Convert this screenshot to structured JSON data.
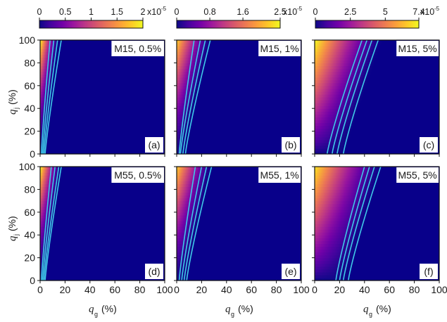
{
  "colormap_stops": [
    "#0d0887",
    "#46039f",
    "#7201a8",
    "#9c179e",
    "#bd3786",
    "#d8576b",
    "#ed7953",
    "#fb9f3a",
    "#fdca26",
    "#f0f921"
  ],
  "background_color": "#08008a",
  "contour_color": "#3fc8e8",
  "chart_data": {
    "type": "heatmap",
    "xlabel": {
      "symbol": "q",
      "subscript": "g",
      "unit": "(%)"
    },
    "ylabel": {
      "symbol": "q",
      "subscript": "j",
      "unit": "(%)"
    },
    "xlim": [
      0,
      100
    ],
    "ylim": [
      0,
      100
    ],
    "x_ticks": [
      "0",
      "20",
      "40",
      "60",
      "80",
      "100"
    ],
    "y_ticks": [
      "0",
      "20",
      "40",
      "60",
      "80",
      "100"
    ],
    "colorbars": [
      {
        "ticks": [
          "0",
          "0.5",
          "1",
          "1.5",
          "2"
        ],
        "tick_values": [
          0,
          0.5,
          1,
          1.5,
          2
        ],
        "max": 2,
        "multiplier": "x10",
        "exponent": "-5"
      },
      {
        "ticks": [
          "0",
          "0.8",
          "1.6",
          "2.5"
        ],
        "tick_values": [
          0,
          0.8,
          1.6,
          2.5
        ],
        "max": 2.5,
        "multiplier": "x10",
        "exponent": "-5"
      },
      {
        "ticks": [
          "0",
          "2.5",
          "5",
          "7.4"
        ],
        "tick_values": [
          0,
          2.5,
          5,
          7.4
        ],
        "max": 7.4,
        "multiplier": "x10",
        "exponent": "-5"
      }
    ],
    "panels": [
      {
        "label": "M15, 0.5%",
        "tag": "(a)",
        "row": 0,
        "col": 0,
        "boundary_qg": [
          3,
          15
        ],
        "contour_qg": [
          [
            1,
            8
          ],
          [
            2,
            11
          ],
          [
            3,
            14
          ],
          [
            4,
            17
          ]
        ],
        "peak": 1.0,
        "falloff": 1.6
      },
      {
        "label": "M15, 1%",
        "tag": "(b)",
        "row": 0,
        "col": 1,
        "boundary_qg": [
          6,
          28
        ],
        "contour_qg": [
          [
            2,
            14
          ],
          [
            3,
            19
          ],
          [
            5,
            23
          ],
          [
            7,
            27
          ]
        ],
        "peak": 0.9,
        "falloff": 1.3
      },
      {
        "label": "M15, 5%",
        "tag": "(c)",
        "row": 0,
        "col": 2,
        "boundary_qg": [
          25,
          55
        ],
        "contour_qg": [
          [
            10,
            38
          ],
          [
            14,
            42
          ],
          [
            18,
            46
          ],
          [
            23,
            51
          ]
        ],
        "peak": 1.0,
        "falloff": 0.9
      },
      {
        "label": "M55, 0.5%",
        "tag": "(d)",
        "row": 1,
        "col": 0,
        "boundary_qg": [
          4,
          17
        ],
        "contour_qg": [
          [
            1,
            9
          ],
          [
            2,
            12
          ],
          [
            3,
            15
          ],
          [
            4,
            17
          ]
        ],
        "peak": 1.0,
        "falloff": 1.6
      },
      {
        "label": "M55, 1%",
        "tag": "(e)",
        "row": 1,
        "col": 1,
        "boundary_qg": [
          8,
          29
        ],
        "contour_qg": [
          [
            2,
            15
          ],
          [
            4,
            20
          ],
          [
            6,
            24
          ],
          [
            8,
            28
          ]
        ],
        "peak": 0.9,
        "falloff": 1.3
      },
      {
        "label": "M55, 5%",
        "tag": "(f)",
        "row": 1,
        "col": 2,
        "boundary_qg": [
          28,
          55
        ],
        "contour_qg": [
          [
            17,
            40
          ],
          [
            20,
            44
          ],
          [
            23,
            48
          ],
          [
            27,
            53
          ]
        ],
        "peak": 0.95,
        "falloff": 0.9
      }
    ]
  }
}
